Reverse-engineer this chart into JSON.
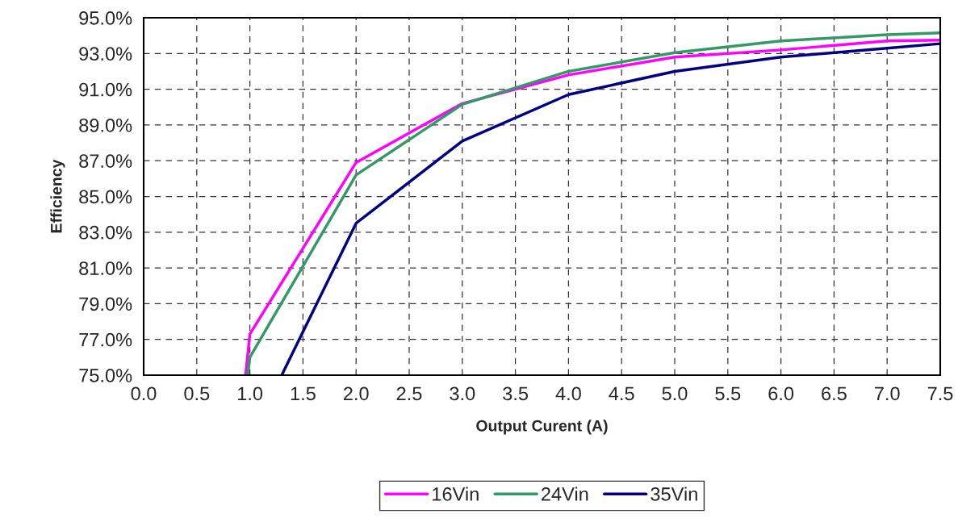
{
  "chart_data": {
    "type": "line",
    "xlabel": "Output Curent (A)",
    "ylabel": "Efficiency",
    "series": [
      {
        "name": "16Vin",
        "color": "#ff00ff",
        "x": [
          0.96,
          1.0,
          2.0,
          3.0,
          4.0,
          5.0,
          6.0,
          7.0,
          7.5
        ],
        "values": [
          75.0,
          77.3,
          86.9,
          90.2,
          91.8,
          92.8,
          93.2,
          93.7,
          93.75
        ]
      },
      {
        "name": "24Vin",
        "color": "#339966",
        "x": [
          0.98,
          1.0,
          2.0,
          3.0,
          4.0,
          5.0,
          6.0,
          7.0,
          7.5
        ],
        "values": [
          75.0,
          76.0,
          86.2,
          90.15,
          92.0,
          93.05,
          93.7,
          94.05,
          94.15
        ]
      },
      {
        "name": "35Vin",
        "color": "#000080",
        "x": [
          1.3,
          2.0,
          3.0,
          4.0,
          5.0,
          6.0,
          7.0,
          7.5
        ],
        "values": [
          75.0,
          83.5,
          88.1,
          90.7,
          92.0,
          92.8,
          93.3,
          93.55
        ]
      }
    ],
    "xlim": [
      0,
      7.5
    ],
    "xticks": [
      {
        "value": 0,
        "label": "0.0"
      },
      0.5,
      {
        "value": 1,
        "label": "1.0"
      },
      1.5,
      {
        "value": 2,
        "label": "2.0"
      },
      2.5,
      {
        "value": 3,
        "label": "3.0"
      },
      3.5,
      {
        "value": 4,
        "label": "4.0"
      },
      4.5,
      {
        "value": 5,
        "label": "5.0"
      },
      5.5,
      {
        "value": 6,
        "label": "6.0"
      },
      6.5,
      {
        "value": 7,
        "label": "7.0"
      },
      7.5
    ],
    "ylim": [
      75,
      95
    ],
    "yticks": [
      {
        "value": 75,
        "label": "75.0%"
      },
      {
        "value": 77,
        "label": "77.0%"
      },
      {
        "value": 79,
        "label": "79.0%"
      },
      {
        "value": 81,
        "label": "81.0%"
      },
      {
        "value": 83,
        "label": "83.0%"
      },
      {
        "value": 85,
        "label": "85.0%"
      },
      {
        "value": 87,
        "label": "87.0%"
      },
      {
        "value": 89,
        "label": "89.0%"
      },
      {
        "value": 91,
        "label": "91.0%"
      },
      {
        "value": 93,
        "label": "93.0%"
      },
      {
        "value": 95,
        "label": "95.0%"
      }
    ],
    "grid": true,
    "legend": "bottom",
    "marker": "none",
    "line_style": "solid"
  }
}
